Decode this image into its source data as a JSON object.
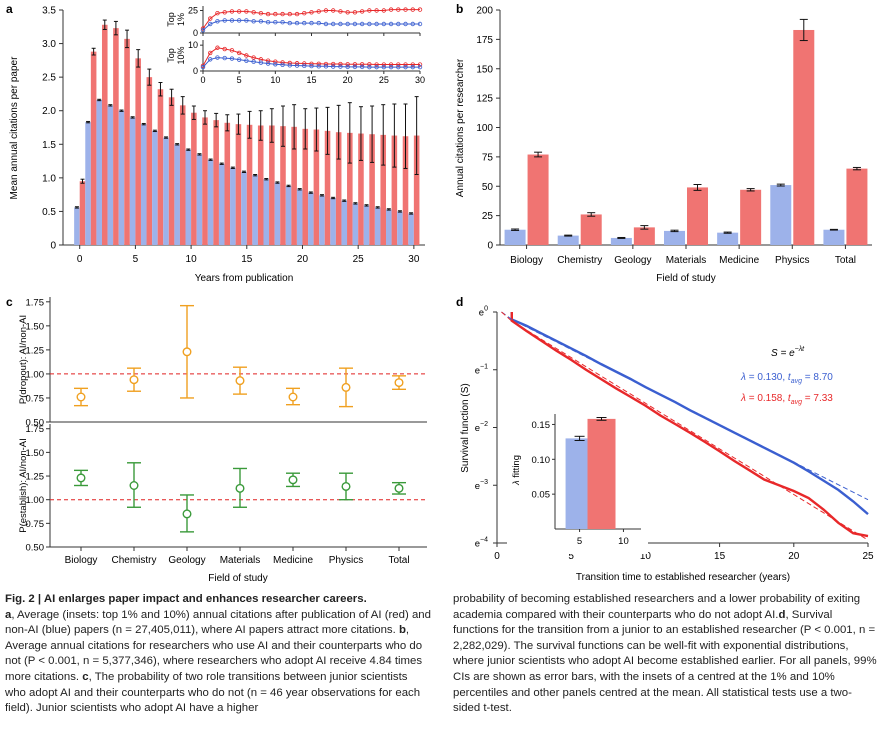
{
  "colors": {
    "ai": "#f07472",
    "nonai": "#9db2ea",
    "ai_line": "#e8282a",
    "nonai_line": "#3b5fd0",
    "orange": "#f0a020",
    "green": "#3a9a3a",
    "ref": "#e02020"
  },
  "panels": {
    "a": {
      "letter": "a",
      "inset_top_label": "Top 1%",
      "inset_bottom_label": "Top 10%"
    },
    "b": {
      "letter": "b"
    },
    "c": {
      "letter": "c"
    },
    "d": {
      "letter": "d",
      "formula": "S = e^{-λt}",
      "legend_blue": "λ = 0.130, t_avg = 8.70",
      "legend_red": "λ = 0.158, t_avg = 7.33",
      "inset_ylabel": "λ fitting"
    }
  },
  "chart_data": [
    {
      "panel": "a",
      "type": "bar",
      "xlabel": "Years from publication",
      "ylabel": "Mean annual citations per paper",
      "xlim": [
        -1.5,
        31
      ],
      "ylim": [
        0,
        3.5
      ],
      "xticks": [
        0,
        5,
        10,
        15,
        20,
        25,
        30
      ],
      "yticks": [
        0,
        0.5,
        1.0,
        1.5,
        2.0,
        2.5,
        3.0,
        3.5
      ],
      "ytick_labels": [
        "0",
        "0.5",
        "1.0",
        "1.5",
        "2.0",
        "2.5",
        "3.0",
        "3.5"
      ],
      "years": [
        0,
        1,
        2,
        3,
        4,
        5,
        6,
        7,
        8,
        9,
        10,
        11,
        12,
        13,
        14,
        15,
        16,
        17,
        18,
        19,
        20,
        21,
        22,
        23,
        24,
        25,
        26,
        27,
        28,
        29,
        30
      ],
      "series": [
        {
          "values": [
            0.56,
            1.83,
            2.16,
            2.08,
            2.0,
            1.9,
            1.8,
            1.7,
            1.6,
            1.5,
            1.42,
            1.35,
            1.27,
            1.21,
            1.15,
            1.09,
            1.04,
            0.98,
            0.93,
            0.88,
            0.83,
            0.78,
            0.74,
            0.7,
            0.66,
            0.62,
            0.59,
            0.56,
            0.53,
            0.5,
            0.47
          ],
          "err": [
            0.01,
            0.01,
            0.01,
            0.01,
            0.01,
            0.01,
            0.01,
            0.01,
            0.01,
            0.01,
            0.01,
            0.01,
            0.01,
            0.01,
            0.01,
            0.01,
            0.01,
            0.01,
            0.01,
            0.01,
            0.01,
            0.01,
            0.01,
            0.01,
            0.01,
            0.01,
            0.01,
            0.01,
            0.01,
            0.01,
            0.01
          ]
        },
        {
          "values": [
            0.95,
            2.88,
            3.28,
            3.23,
            3.07,
            2.78,
            2.5,
            2.32,
            2.2,
            2.08,
            1.97,
            1.9,
            1.86,
            1.82,
            1.8,
            1.79,
            1.78,
            1.78,
            1.77,
            1.76,
            1.73,
            1.72,
            1.7,
            1.68,
            1.67,
            1.66,
            1.65,
            1.64,
            1.63,
            1.62,
            1.63
          ],
          "err": [
            0.03,
            0.05,
            0.07,
            0.1,
            0.13,
            0.13,
            0.12,
            0.1,
            0.12,
            0.13,
            0.1,
            0.1,
            0.1,
            0.12,
            0.15,
            0.2,
            0.22,
            0.25,
            0.3,
            0.33,
            0.3,
            0.32,
            0.35,
            0.4,
            0.45,
            0.4,
            0.42,
            0.45,
            0.47,
            0.48,
            0.58
          ]
        }
      ]
    },
    {
      "panel": "a-inset-top",
      "type": "line",
      "ylabel": "Top 1%",
      "xlim": [
        0,
        30
      ],
      "ylim": [
        0,
        30
      ],
      "xticks": [
        0,
        5,
        10,
        15,
        20,
        25,
        30
      ],
      "yticks": [
        0,
        25
      ],
      "x": [
        0,
        1,
        2,
        3,
        4,
        5,
        6,
        7,
        8,
        9,
        10,
        11,
        12,
        13,
        14,
        15,
        16,
        17,
        18,
        19,
        20,
        21,
        22,
        23,
        24,
        25,
        26,
        27,
        28,
        29,
        30
      ],
      "series": [
        {
          "values": [
            5,
            16,
            22,
            23,
            24,
            24,
            24,
            23,
            22,
            21,
            21,
            21,
            21,
            21,
            22,
            23,
            24,
            25,
            25,
            24,
            23,
            23,
            24,
            25,
            25,
            25,
            26,
            26,
            26,
            26,
            26
          ]
        },
        {
          "values": [
            3,
            10,
            13,
            14,
            14,
            14,
            14,
            13,
            13,
            12,
            12,
            12,
            11,
            11,
            11,
            11,
            11,
            10,
            10,
            10,
            10,
            10,
            10,
            10,
            10,
            10,
            10,
            10,
            10,
            10,
            10
          ]
        }
      ]
    },
    {
      "panel": "a-inset-bottom",
      "type": "line",
      "ylabel": "Top 10%",
      "xlim": [
        0,
        30
      ],
      "ylim": [
        0,
        12
      ],
      "xticks": [
        0,
        5,
        10,
        15,
        20,
        25,
        30
      ],
      "yticks": [
        0,
        10
      ],
      "x": [
        0,
        1,
        2,
        3,
        4,
        5,
        6,
        7,
        8,
        9,
        10,
        11,
        12,
        13,
        14,
        15,
        16,
        17,
        18,
        19,
        20,
        21,
        22,
        23,
        24,
        25,
        26,
        27,
        28,
        29,
        30
      ],
      "series": [
        {
          "values": [
            2,
            7,
            9,
            8.5,
            8,
            7,
            6,
            5.2,
            4.5,
            4,
            3.6,
            3.3,
            3.1,
            3,
            2.9,
            2.8,
            2.8,
            2.7,
            2.7,
            2.7,
            2.6,
            2.6,
            2.6,
            2.6,
            2.5,
            2.5,
            2.5,
            2.5,
            2.5,
            2.5,
            2.5
          ]
        },
        {
          "values": [
            1.5,
            4.5,
            5.2,
            5,
            4.8,
            4.4,
            4,
            3.6,
            3.2,
            2.9,
            2.6,
            2.4,
            2.2,
            2.1,
            2,
            1.9,
            1.8,
            1.8,
            1.7,
            1.7,
            1.6,
            1.6,
            1.6,
            1.5,
            1.5,
            1.5,
            1.5,
            1.5,
            1.5,
            1.5,
            1.5
          ]
        }
      ]
    },
    {
      "panel": "b",
      "type": "bar",
      "xlabel": "Field of study",
      "ylabel": "Annual citations per researcher",
      "categories": [
        "Biology",
        "Chemistry",
        "Geology",
        "Materials",
        "Medicine",
        "Physics",
        "Total"
      ],
      "ylim": [
        0,
        200
      ],
      "yticks": [
        0,
        25,
        50,
        75,
        100,
        125,
        150,
        175,
        200
      ],
      "series": [
        {
          "values": [
            13,
            8,
            6,
            12,
            10.5,
            51,
            13
          ],
          "err": [
            0.6,
            0.4,
            0.4,
            0.6,
            0.5,
            0.8,
            0.3
          ]
        },
        {
          "values": [
            77,
            26,
            15,
            49,
            47,
            183,
            65
          ],
          "err": [
            2,
            1.5,
            1.5,
            2.5,
            1,
            9,
            1
          ]
        }
      ]
    },
    {
      "panel": "c-top",
      "type": "scatter",
      "ylabel": "P(dropout): AI/non-AI",
      "categories": [
        "Biology",
        "Chemistry",
        "Geology",
        "Materials",
        "Medicine",
        "Physics",
        "Total"
      ],
      "ylim": [
        0.5,
        1.8
      ],
      "yticks": [
        0.5,
        0.75,
        1.0,
        1.25,
        1.5,
        1.75
      ],
      "ytick_labels": [
        "0.50",
        "0.75",
        "1.00",
        "1.25",
        "1.50",
        "1.75"
      ],
      "reference": 1.0,
      "values": [
        0.76,
        0.94,
        1.23,
        0.93,
        0.76,
        0.86,
        0.91
      ],
      "lower": [
        0.67,
        0.82,
        0.75,
        0.79,
        0.68,
        0.66,
        0.84
      ],
      "upper": [
        0.85,
        1.06,
        1.71,
        1.07,
        0.85,
        1.06,
        0.98
      ]
    },
    {
      "panel": "c-bottom",
      "type": "scatter",
      "xlabel": "Field of study",
      "ylabel": "P(establish): AI/non-AI",
      "categories": [
        "Biology",
        "Chemistry",
        "Geology",
        "Materials",
        "Medicine",
        "Physics",
        "Total"
      ],
      "ylim": [
        0.5,
        1.8
      ],
      "yticks": [
        0.5,
        0.75,
        1.0,
        1.25,
        1.5,
        1.75
      ],
      "ytick_labels": [
        "0.50",
        "0.75",
        "1.00",
        "1.25",
        "1.50",
        "1.75"
      ],
      "reference": 1.0,
      "values": [
        1.23,
        1.15,
        0.85,
        1.12,
        1.21,
        1.14,
        1.12
      ],
      "lower": [
        1.15,
        0.92,
        0.66,
        0.92,
        1.14,
        1.0,
        1.06
      ],
      "upper": [
        1.31,
        1.39,
        1.05,
        1.33,
        1.28,
        1.28,
        1.18
      ]
    },
    {
      "panel": "d",
      "type": "line",
      "xlabel": "Transition time to established researcher (years)",
      "ylabel": "Survival function (S)",
      "xlim": [
        0,
        25
      ],
      "ylim": [
        -4,
        0
      ],
      "yscale": "log_e",
      "xticks": [
        0,
        5,
        10,
        15,
        20,
        25
      ],
      "yticks": [
        0,
        -1,
        -2,
        -3,
        -4
      ],
      "ytick_labels": [
        "e0",
        "e−1",
        "e−2",
        "e−3",
        "e−4"
      ],
      "x": [
        1,
        2,
        3,
        4,
        5,
        6,
        7,
        8,
        9,
        10,
        11,
        12,
        13,
        14,
        15,
        16,
        17,
        18,
        19,
        20,
        21,
        22,
        23,
        24,
        25
      ],
      "series": [
        {
          "values": [
            -0.13,
            -0.24,
            -0.37,
            -0.5,
            -0.63,
            -0.76,
            -0.9,
            -1.03,
            -1.16,
            -1.3,
            -1.43,
            -1.56,
            -1.7,
            -1.83,
            -1.96,
            -2.09,
            -2.22,
            -2.35,
            -2.48,
            -2.61,
            -2.76,
            -2.92,
            -3.08,
            -3.28,
            -3.5
          ]
        },
        {
          "values": [
            -0.15,
            -0.33,
            -0.5,
            -0.67,
            -0.83,
            -1.0,
            -1.16,
            -1.32,
            -1.47,
            -1.62,
            -1.79,
            -1.94,
            -2.09,
            -2.25,
            -2.41,
            -2.58,
            -2.74,
            -2.9,
            -3.0,
            -3.1,
            -3.22,
            -3.42,
            -3.65,
            -3.83,
            -3.88
          ]
        },
        {
          "values": [
            -0.13,
            -0.26,
            -0.39,
            -0.52,
            -0.65,
            -0.78,
            -0.91,
            -1.04,
            -1.17,
            -1.3,
            -1.43,
            -1.56,
            -1.69,
            -1.82,
            -1.95,
            -2.08,
            -2.21,
            -2.34,
            -2.47,
            -2.6,
            -2.73,
            -2.86,
            -2.99,
            -3.12,
            -3.25
          ]
        },
        {
          "values": [
            -0.158,
            -0.316,
            -0.474,
            -0.632,
            -0.79,
            -0.948,
            -1.106,
            -1.264,
            -1.422,
            -1.58,
            -1.738,
            -1.896,
            -2.054,
            -2.212,
            -2.37,
            -2.528,
            -2.686,
            -2.844,
            -3.002,
            -3.16,
            -3.318,
            -3.476,
            -3.634,
            -3.792,
            -3.95
          ]
        }
      ]
    },
    {
      "panel": "d-inset",
      "type": "bar",
      "ylabel": "λ fitting",
      "xlim": [
        2.2,
        12
      ],
      "ylim": [
        0,
        0.165
      ],
      "xticks": [
        5,
        10
      ],
      "yticks": [
        0.05,
        0.1,
        0.15
      ],
      "ytick_labels": [
        "0.05",
        "0.10",
        "0.15"
      ],
      "x": [
        5,
        7.5
      ],
      "values": [
        0.13,
        0.158
      ],
      "err": [
        0.003,
        0.002
      ]
    }
  ],
  "caption": {
    "title": "Fig. 2 | AI enlarges paper impact and enhances researcher careers.",
    "left_parts": [
      {
        "bold": "a",
        "text": ", Average (insets: top 1% and 10%) annual citations after publication of AI (red) and non-AI (blue) papers (n = 27,405,011), where AI papers attract more citations. "
      },
      {
        "bold": "b",
        "text": ", Average annual citations for researchers who use AI and their counterparts who do not (P < 0.001, n = 5,377,346), where researchers who adopt AI receive 4.84 times more citations. "
      },
      {
        "bold": "c",
        "text": ", The probability of two role transitions between junior scientists who adopt AI and their counterparts who do not (n = 46 year observations for each field). Junior scientists who adopt AI have a higher"
      }
    ],
    "right_parts": [
      {
        "bold": "",
        "text": "probability of becoming established researchers and a lower probability of exiting academia compared with their counterparts who do not adopt AI."
      },
      {
        "bold": "d",
        "text": ", Survival functions for the transition from a junior to an established researcher (P < 0.001, n = 2,282,029). The survival functions can be well-fit with exponential distributions, where junior scientists who adopt AI become established earlier. For all panels, 99% CIs are shown as error bars, with the insets of a centred at the 1% and 10% percentiles and other panels centred at the mean. All statistical tests use a two-sided t-test."
      }
    ]
  }
}
